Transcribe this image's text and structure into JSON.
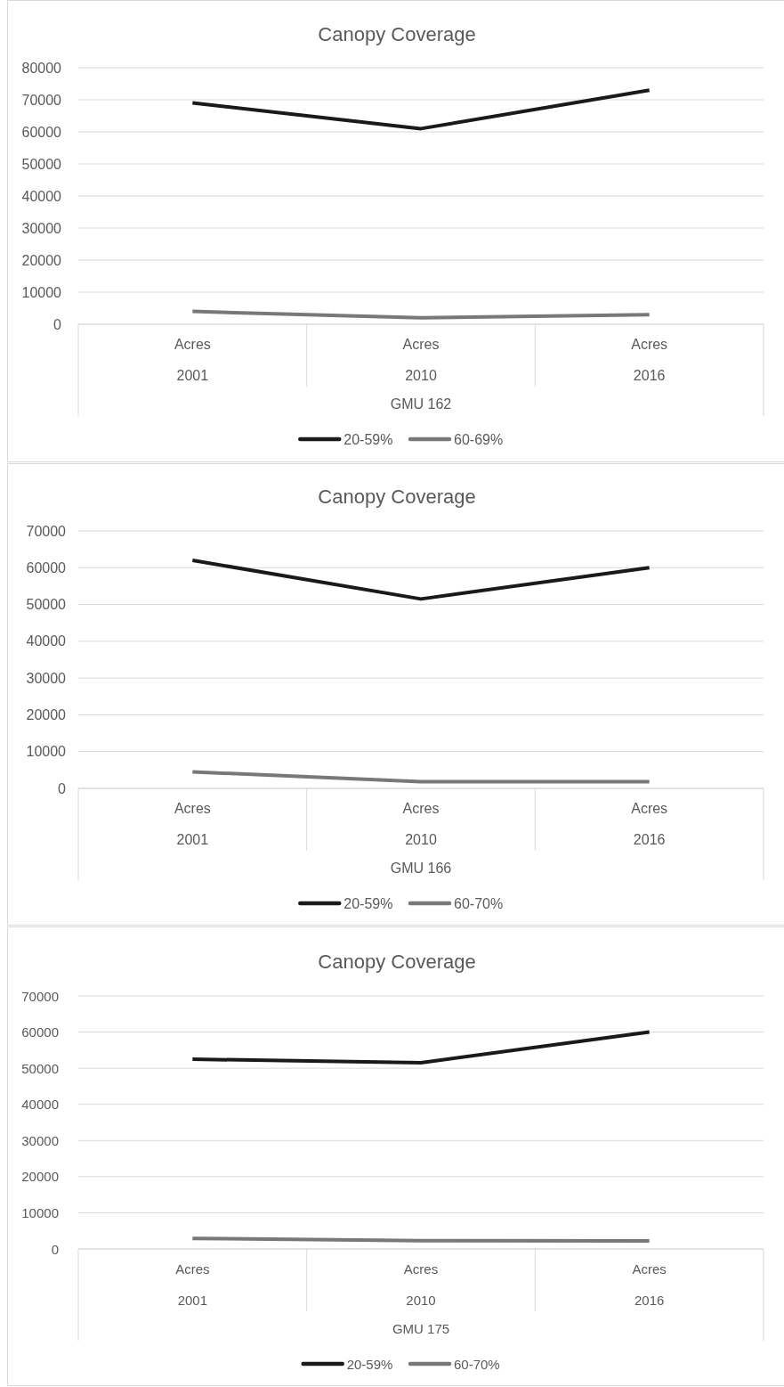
{
  "chart_data": [
    {
      "type": "line",
      "title": "Canopy Coverage",
      "xlabel": "GMU 162",
      "categories": [
        "Acres\n2001",
        "Acres\n2010",
        "Acres\n2016"
      ],
      "series": [
        {
          "name": "20-59%",
          "color": "#1a1a1a",
          "values": [
            69000,
            61000,
            73000
          ]
        },
        {
          "name": "60-69%",
          "color": "#787878",
          "values": [
            4000,
            2000,
            3000
          ]
        }
      ],
      "ylim": [
        0,
        80000
      ],
      "yticks": [
        0,
        10000,
        20000,
        30000,
        40000,
        50000,
        60000,
        70000,
        80000
      ],
      "grid": "y",
      "legend": "bottom"
    },
    {
      "type": "line",
      "title": "Canopy Coverage",
      "xlabel": "GMU 166",
      "categories": [
        "Acres\n2001",
        "Acres\n2010",
        "Acres\n2016"
      ],
      "series": [
        {
          "name": "20-59%",
          "color": "#1a1a1a",
          "values": [
            62000,
            51500,
            60000
          ]
        },
        {
          "name": "60-70%",
          "color": "#787878",
          "values": [
            4500,
            1800,
            1800
          ]
        }
      ],
      "ylim": [
        0,
        70000
      ],
      "yticks": [
        0,
        10000,
        20000,
        30000,
        40000,
        50000,
        60000,
        70000
      ],
      "grid": "y",
      "legend": "bottom"
    },
    {
      "type": "line",
      "title": "Canopy Coverage",
      "xlabel": "GMU 175",
      "categories": [
        "Acres\n2001",
        "Acres\n2010",
        "Acres\n2016"
      ],
      "series": [
        {
          "name": "20-59%",
          "color": "#1a1a1a",
          "values": [
            52500,
            51500,
            60000
          ]
        },
        {
          "name": "60-70%",
          "color": "#787878",
          "values": [
            2900,
            2300,
            2200
          ]
        }
      ],
      "ylim": [
        0,
        70000
      ],
      "yticks": [
        0,
        10000,
        20000,
        30000,
        40000,
        50000,
        60000,
        70000
      ],
      "grid": "y",
      "legend": "bottom"
    }
  ]
}
